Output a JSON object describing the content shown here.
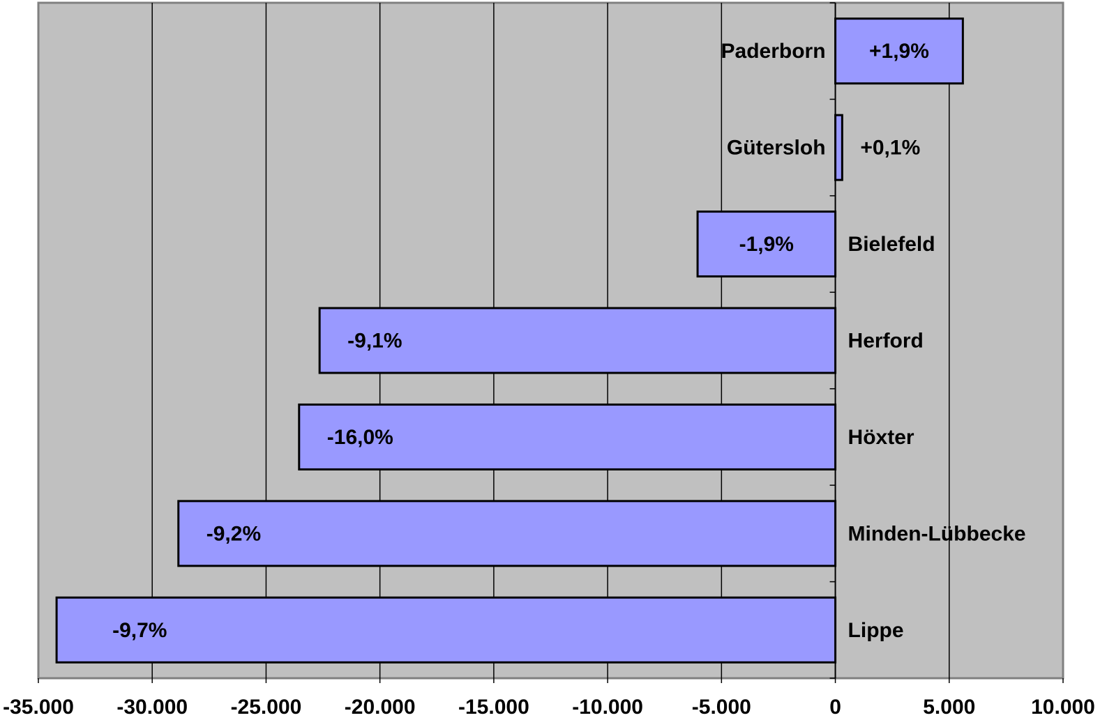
{
  "chart_data": {
    "type": "bar",
    "orientation": "horizontal",
    "categories": [
      "Paderborn",
      "Gütersloh",
      "Bielefeld",
      "Herford",
      "Höxter",
      "Minden-Lübbecke",
      "Lippe"
    ],
    "values": [
      5600,
      300,
      -6050,
      -22650,
      -23550,
      -28850,
      -34200
    ],
    "data_labels": [
      "+1,9%",
      "+0,1%",
      "-1,9%",
      "-9,1%",
      "-16,0%",
      "-9,2%",
      "-9,7%"
    ],
    "xlim": [
      -35000,
      10000
    ],
    "x_ticks": [
      -35000,
      -30000,
      -25000,
      -20000,
      -15000,
      -10000,
      -5000,
      0,
      5000,
      10000
    ],
    "x_tick_labels": [
      "-35.000",
      "-30.000",
      "-25.000",
      "-20.000",
      "-15.000",
      "-10.000",
      "-5.000",
      "0",
      "5.000",
      "10.000"
    ],
    "grid": "vertical major gridlines",
    "title": "",
    "xlabel": "",
    "ylabel": "",
    "colors": {
      "plot_background": "#c0c0c0",
      "bar_fill": "#9999ff",
      "bar_border": "#000000",
      "gridline": "#000000",
      "axis": "#808080"
    }
  }
}
